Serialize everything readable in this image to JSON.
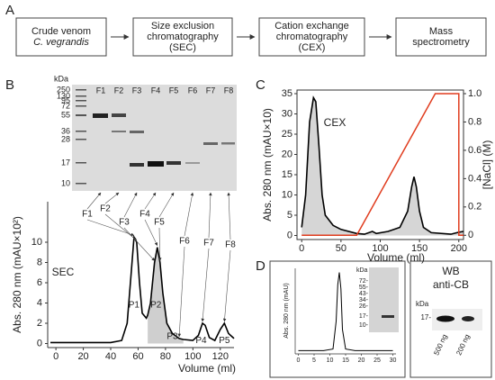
{
  "flow": {
    "label": "A",
    "steps": [
      [
        "Crude venom",
        "C. vegrandis"
      ],
      [
        "Size exclusion",
        "chromatography",
        "(SEC)"
      ],
      [
        "Cation exchange",
        "chromatography",
        "(CEX)"
      ],
      [
        "Mass",
        "spectrometry"
      ]
    ]
  },
  "sec": {
    "type": "line",
    "label": "B",
    "title": "SEC",
    "gel": {
      "unit": "kDa",
      "markers": [
        250,
        130,
        95,
        72,
        55,
        36,
        28,
        17,
        10
      ],
      "lanes": [
        "F1",
        "F2",
        "F3",
        "F4",
        "F5",
        "F6",
        "F7",
        "F8"
      ]
    },
    "fraction_labels": [
      "F1",
      "F2",
      "F3",
      "F4",
      "F5",
      "F6",
      "F7",
      "F8"
    ],
    "peak_labels": [
      "P1",
      "P2",
      "P3",
      "P4",
      "P5"
    ],
    "ylabel": "Abs. 280 nm (mAU×10²)",
    "xlabel": "Volume (ml)",
    "xlim": [
      -6,
      130
    ],
    "xticks": [
      0,
      20,
      40,
      60,
      80,
      100,
      120
    ],
    "ylim": [
      -0.4,
      14
    ],
    "yticks": [
      0,
      2,
      4,
      6,
      8,
      10
    ],
    "shaded": [
      67,
      93
    ],
    "color": "#000000",
    "x": [
      -4,
      40,
      48,
      52,
      55,
      57,
      59,
      61,
      63,
      66,
      67,
      69,
      72,
      74,
      76,
      78,
      81,
      85,
      90,
      93,
      100,
      104,
      107,
      109,
      112,
      116,
      120,
      123,
      126,
      130
    ],
    "values": [
      0.1,
      0.1,
      0.3,
      2,
      7,
      10.5,
      10,
      6,
      3,
      2.5,
      2.8,
      4,
      8,
      9.5,
      8,
      5,
      2,
      1,
      0.5,
      0.4,
      0.3,
      0.8,
      2,
      1.8,
      0.6,
      0.3,
      1.4,
      2,
      1,
      0.5
    ]
  },
  "cex": {
    "type": "line",
    "label": "C",
    "title": "CEX",
    "ylabel": "Abs. 280 nm (mAU×10)",
    "y2label": "[NaCl] (M)",
    "xlabel": "Volume (ml)",
    "xlim": [
      -6,
      206
    ],
    "xticks": [
      0,
      50,
      100,
      150,
      200
    ],
    "ylim": [
      -1,
      35
    ],
    "yticks": [
      0,
      5,
      10,
      15,
      20,
      25,
      30,
      35
    ],
    "y2lim": [
      -0.03,
      1
    ],
    "y2ticks": [
      0,
      0.2,
      0.4,
      0.6,
      0.8,
      {
        "value": 1,
        "label": "1.0"
      }
    ],
    "series": [
      {
        "color": "#000000",
        "x": [
          0,
          5,
          10,
          15,
          18,
          22,
          26,
          30,
          40,
          50,
          70,
          80,
          90,
          95,
          110,
          125,
          135,
          140,
          143,
          146,
          150,
          155,
          165,
          190,
          200,
          206
        ],
        "values": [
          2,
          10,
          28,
          34,
          33,
          22,
          10,
          5,
          2.5,
          1.5,
          0.5,
          0.3,
          1,
          0.5,
          1,
          2,
          6,
          12,
          14.5,
          12,
          6,
          2,
          0.7,
          0.3,
          0.8,
          1
        ]
      },
      {
        "color": "#e03c1e",
        "axis": "y2",
        "x": [
          0,
          70,
          170,
          200,
          200,
          206
        ],
        "values": [
          0,
          0,
          1,
          1,
          0,
          0
        ]
      }
    ]
  },
  "purity": {
    "label": "D",
    "chromatogram": {
      "ylabel": "Abs. 280 nm (mAU)",
      "xlim": [
        -1,
        31
      ],
      "xticks": [
        0,
        5,
        10,
        15,
        20,
        25,
        30
      ],
      "ylim": [
        0,
        1.05
      ],
      "x": [
        0,
        8,
        11,
        12,
        12.5,
        13,
        13.5,
        14,
        15,
        18,
        30
      ],
      "values": [
        0.04,
        0.04,
        0.06,
        0.4,
        0.85,
        1,
        0.8,
        0.3,
        0.06,
        0.04,
        0.04
      ]
    },
    "gel": {
      "unit": "kDa",
      "markers": [
        "72-",
        "55-",
        "43-",
        "34-",
        "26-",
        "17-",
        "10-"
      ]
    },
    "wb": {
      "title": [
        "WB",
        "anti-CB"
      ],
      "unit": "kDa",
      "marker": "17-",
      "lanes": [
        "500 ng",
        "200 ng"
      ]
    }
  }
}
